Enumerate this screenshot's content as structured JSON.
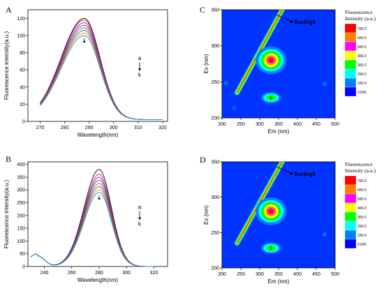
{
  "chart_data": [
    {
      "panel_letter": "A",
      "type": "line",
      "xlabel": "Wavelength(nm)",
      "ylabel": "Fluorescence intensity(a.u.)",
      "xlim": [
        265,
        322
      ],
      "ylim": [
        0,
        130
      ],
      "xticks": [
        270,
        280,
        290,
        300,
        310,
        320
      ],
      "yticks": [
        0,
        20,
        40,
        60,
        80,
        100,
        120
      ],
      "x_range": [
        270,
        320
      ],
      "peak_x": 288,
      "sigma_left": 9.5,
      "sigma_right": 6.5,
      "base": 2,
      "left_value": 8,
      "series_peaks": [
        120,
        118,
        115,
        112,
        109,
        106,
        103,
        100
      ],
      "series_colors": [
        "#000000",
        "#d81b60",
        "#7b1fa2",
        "#3949ab",
        "#e53935",
        "#00897b",
        "#fb8c00",
        "#1e88e5"
      ],
      "arrow_label_top": "a",
      "arrow_label_bottom": "k"
    },
    {
      "panel_letter": "B",
      "type": "line",
      "xlabel": "Wavelength(nm)",
      "ylabel": "Fluorescence intensity(a.u.)",
      "xlim": [
        228,
        330
      ],
      "ylim": [
        0,
        410
      ],
      "xticks": [
        240,
        260,
        280,
        300,
        320
      ],
      "yticks": [
        0,
        50,
        100,
        150,
        200,
        250,
        300,
        350,
        400
      ],
      "x_range": [
        230,
        320
      ],
      "peak_x": 280,
      "sigma_left": 11,
      "sigma_right": 9,
      "shoulder_x": 235,
      "shoulder_height": 42,
      "series_peaks": [
        380,
        362,
        350,
        338,
        325,
        313,
        300,
        290
      ],
      "series_colors": [
        "#000000",
        "#d81b60",
        "#7b1fa2",
        "#3949ab",
        "#e53935",
        "#00897b",
        "#fb8c00",
        "#1e88e5"
      ],
      "arrow_label_top": "a",
      "arrow_label_bottom": "k"
    },
    {
      "panel_letter": "C",
      "type": "heatmap",
      "xlabel": "Em (nm)",
      "ylabel": "Ex (nm)",
      "xlim": [
        200,
        500
      ],
      "ylim": [
        200,
        350
      ],
      "xticks": [
        200,
        250,
        300,
        350,
        400,
        450,
        500
      ],
      "yticks": [
        200,
        250,
        300,
        350
      ],
      "rayleigh_label": "Rayleigh",
      "peaks": [
        {
          "label": "a",
          "em": 330,
          "ex": 280,
          "intensity": 700
        },
        {
          "label": "b",
          "em": 330,
          "ex": 228,
          "intensity": 250
        }
      ],
      "extra_markers": [
        "a",
        "b",
        "c"
      ],
      "legend": {
        "title": "Fluorescence Intensity (a.u.)",
        "levels": [
          "700.0",
          "600.0",
          "500.0",
          "400.0",
          "300.0",
          "200.0",
          "100.0",
          "0.000"
        ],
        "colors": [
          "#ff0000",
          "#ff8000",
          "#ff00ff",
          "#ffff00",
          "#00ff00",
          "#00ffff",
          "#0080ff",
          "#0000ff"
        ]
      }
    },
    {
      "panel_letter": "D",
      "type": "heatmap",
      "xlabel": "Em (nm)",
      "ylabel": "Ex (nm)",
      "xlim": [
        200,
        500
      ],
      "ylim": [
        200,
        350
      ],
      "xticks": [
        200,
        250,
        300,
        350,
        400,
        450,
        500
      ],
      "yticks": [
        200,
        250,
        300,
        350
      ],
      "rayleigh_label": "Rayleigh",
      "peaks": [
        {
          "label": "a",
          "em": 330,
          "ex": 280,
          "intensity": 700
        },
        {
          "label": "b",
          "em": 330,
          "ex": 228,
          "intensity": 250
        }
      ],
      "extra_markers": [
        "c"
      ],
      "legend": {
        "title": "Fluorescence Intensity (a.u.)",
        "levels": [
          "700.0",
          "600.0",
          "500.0",
          "400.0",
          "300.0",
          "200.0",
          "100.0",
          "0.000"
        ],
        "colors": [
          "#ff0000",
          "#ff8000",
          "#ff00ff",
          "#ffff00",
          "#00ff00",
          "#00ffff",
          "#0080ff",
          "#0000ff"
        ]
      }
    }
  ]
}
